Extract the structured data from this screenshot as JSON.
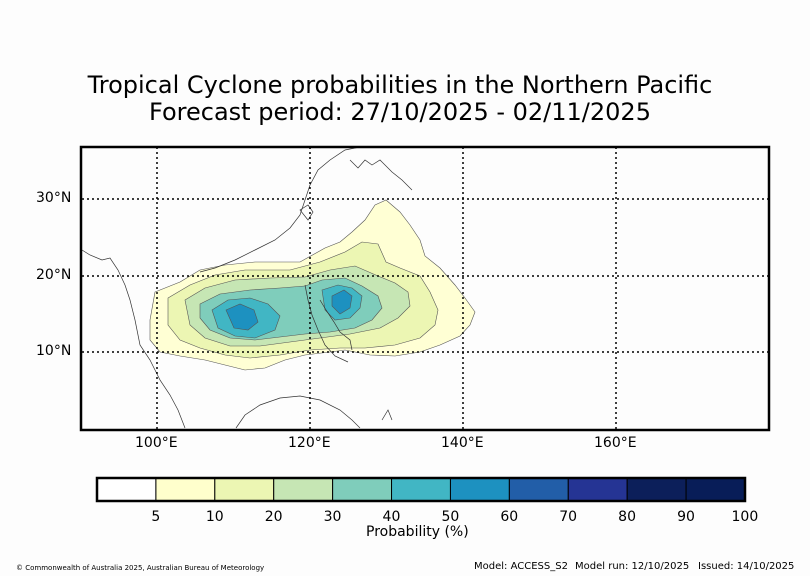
{
  "title": {
    "line1": "Tropical Cyclone probabilities in the Northern Pacific",
    "line2": "Forecast period: 27/10/2025 - 02/11/2025"
  },
  "map": {
    "lat_labels": [
      "30°N",
      "20°N",
      "10°N"
    ],
    "lon_labels": [
      "100°E",
      "120°E",
      "140°E",
      "160°E"
    ],
    "lat_values": [
      30,
      20,
      10
    ],
    "lon_values": [
      100,
      120,
      140,
      160
    ],
    "extent": {
      "lon_min": 90,
      "lon_max": 180,
      "lat_min": 0,
      "lat_max": 37
    }
  },
  "colorbar": {
    "label": "Probability (%)",
    "tick_labels": [
      "5",
      "10",
      "20",
      "30",
      "40",
      "50",
      "60",
      "70",
      "80",
      "90",
      "100"
    ],
    "colors": [
      "#ffffff",
      "#ffffcc",
      "#ecf6b3",
      "#c6e6b4",
      "#7fcdbb",
      "#41b6c4",
      "#1d91c0",
      "#225ea8",
      "#253494",
      "#0c1f5a",
      "#081d58"
    ]
  },
  "footer": {
    "copyright": "© Commonwealth of Australia 2025, Australian Bureau of Meteorology",
    "model": "Model: ACCESS_S2",
    "model_run": "Model run: 12/10/2025",
    "issued": "Issued: 14/10/2025"
  }
}
